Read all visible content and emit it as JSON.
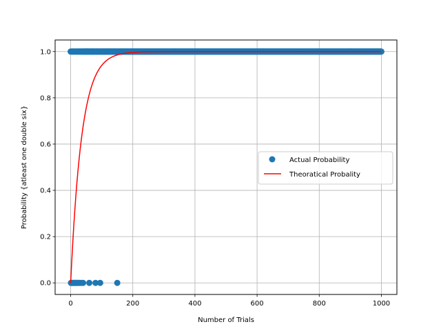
{
  "chart_data": {
    "type": "scatter",
    "title": "",
    "xlabel": "Number of Trials",
    "ylabel": "Probability {atleast one double six}",
    "xlim": [
      -50,
      1050
    ],
    "ylim": [
      -0.05,
      1.05
    ],
    "xticks": [
      0,
      200,
      400,
      600,
      800,
      1000
    ],
    "yticks": [
      0.0,
      0.2,
      0.4,
      0.6,
      0.8,
      1.0
    ],
    "xtick_labels": [
      "0",
      "200",
      "400",
      "600",
      "800",
      "1000"
    ],
    "ytick_labels": [
      "0.0",
      "0.2",
      "0.4",
      "0.6",
      "0.8",
      "1.0"
    ],
    "grid": true,
    "legend_position": "center-right",
    "series": [
      {
        "name": "Actual Probability",
        "kind": "scatter",
        "color": "#1f77b4",
        "zero_trials": [
          1,
          3,
          5,
          8,
          10,
          13,
          15,
          18,
          20,
          23,
          26,
          30,
          35,
          40,
          60,
          80,
          95,
          150
        ],
        "one_range": [
          0,
          1000
        ],
        "one_values": [
          0,
          1
        ]
      },
      {
        "name": "Theoratical Probality",
        "kind": "line",
        "color": "#ff0000",
        "formula": "1 - (35/36)^n",
        "x_range": [
          0,
          1000
        ]
      }
    ]
  }
}
